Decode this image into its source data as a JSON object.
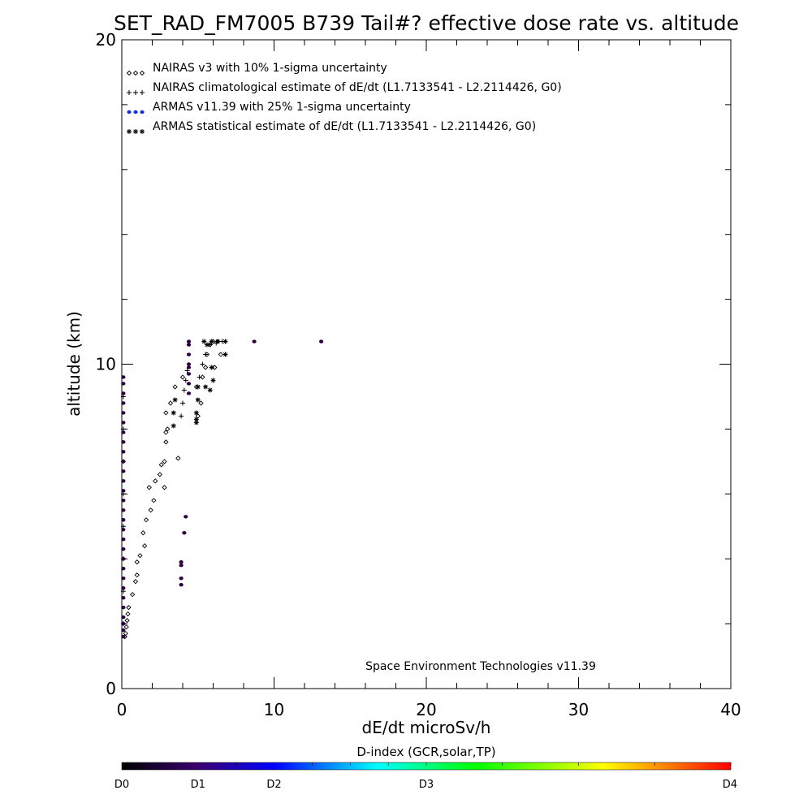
{
  "chart_data": {
    "type": "scatter",
    "title": "SET_RAD_FM7005  B739 Tail#? effective dose rate vs. altitude",
    "xlabel": "dE/dt microSv/h",
    "ylabel": "altitude (km)",
    "xlim": [
      0,
      40
    ],
    "ylim": [
      0,
      20
    ],
    "x_ticks": [
      "0",
      "10",
      "20",
      "30",
      "40"
    ],
    "y_ticks": [
      "0",
      "10",
      "20"
    ],
    "legend_position": "top-left",
    "grid": false,
    "annotation": "Space Environment Technologies v11.39",
    "colorbar": {
      "title": "D-index (GCR,solar,TP)",
      "labels": [
        {
          "text": "D0",
          "value": 0
        },
        {
          "text": "D1",
          "value": 5
        },
        {
          "text": "D2",
          "value": 10
        },
        {
          "text": "D3",
          "value": 20
        },
        {
          "text": "D4",
          "value": 40
        }
      ],
      "colors": [
        "#000000",
        "#3a0070",
        "#0000ff",
        "#00ffff",
        "#00ff00",
        "#ffff00",
        "#ff0000"
      ]
    },
    "series": [
      {
        "name": "NAIRAS v3 with 10% 1-sigma uncertainty",
        "marker": "diamond",
        "color": "#000000",
        "points": [
          [
            0.2,
            1.6
          ],
          [
            0.25,
            1.7
          ],
          [
            0.3,
            1.9
          ],
          [
            0.35,
            2.1
          ],
          [
            0.4,
            2.3
          ],
          [
            0.45,
            2.5
          ],
          [
            0.7,
            2.9
          ],
          [
            0.9,
            3.3
          ],
          [
            1.0,
            3.5
          ],
          [
            1.0,
            3.9
          ],
          [
            1.2,
            4.1
          ],
          [
            1.5,
            4.4
          ],
          [
            1.4,
            4.8
          ],
          [
            1.6,
            5.2
          ],
          [
            1.9,
            5.5
          ],
          [
            2.1,
            5.8
          ],
          [
            1.8,
            6.2
          ],
          [
            2.8,
            6.2
          ],
          [
            2.2,
            6.4
          ],
          [
            2.5,
            6.6
          ],
          [
            2.6,
            6.9
          ],
          [
            2.8,
            7.0
          ],
          [
            3.7,
            7.1
          ],
          [
            2.9,
            7.6
          ],
          [
            2.9,
            7.9
          ],
          [
            3.0,
            8.0
          ],
          [
            2.9,
            8.5
          ],
          [
            3.2,
            8.8
          ],
          [
            3.5,
            9.3
          ],
          [
            4.0,
            9.6
          ],
          [
            5.0,
            8.4
          ],
          [
            5.2,
            8.8
          ],
          [
            4.9,
            9.3
          ],
          [
            5.3,
            9.6
          ],
          [
            5.5,
            9.9
          ],
          [
            6.1,
            9.9
          ],
          [
            5.6,
            10.3
          ],
          [
            6.5,
            10.3
          ],
          [
            5.8,
            10.6
          ],
          [
            6.0,
            10.7
          ],
          [
            6.3,
            10.7
          ]
        ]
      },
      {
        "name": "NAIRAS climatological estimate of dE/dt (L1.7133541 - L2.2114426, G0)",
        "marker": "plus",
        "color": "#000000",
        "points": [
          [
            0.1,
            2.0
          ],
          [
            0.1,
            3.0
          ],
          [
            0.1,
            4.0
          ],
          [
            0.1,
            5.0
          ],
          [
            0.1,
            6.0
          ],
          [
            0.1,
            7.0
          ],
          [
            0.1,
            8.0
          ],
          [
            0.1,
            9.0
          ],
          [
            3.9,
            8.4
          ],
          [
            4.0,
            8.8
          ],
          [
            4.1,
            9.2
          ],
          [
            4.2,
            9.5
          ],
          [
            4.3,
            9.8
          ],
          [
            5.1,
            9.6
          ],
          [
            5.3,
            10.0
          ],
          [
            5.5,
            10.3
          ],
          [
            5.8,
            10.6
          ],
          [
            6.2,
            10.65
          ],
          [
            6.6,
            10.7
          ]
        ]
      },
      {
        "name": "ARMAS v11.39 with 25% 1-sigma uncertainty",
        "marker": "dot",
        "color": "#2a003f",
        "points": [
          [
            0.1,
            1.6
          ],
          [
            0.1,
            1.8
          ],
          [
            0.1,
            2.0
          ],
          [
            0.1,
            2.2
          ],
          [
            0.1,
            2.5
          ],
          [
            0.1,
            2.8
          ],
          [
            0.1,
            3.1
          ],
          [
            0.1,
            3.4
          ],
          [
            0.1,
            3.7
          ],
          [
            0.1,
            4.0
          ],
          [
            0.1,
            4.3
          ],
          [
            0.1,
            4.6
          ],
          [
            0.1,
            4.9
          ],
          [
            0.1,
            5.2
          ],
          [
            0.1,
            5.5
          ],
          [
            0.1,
            5.8
          ],
          [
            0.1,
            6.1
          ],
          [
            0.1,
            6.4
          ],
          [
            0.1,
            6.7
          ],
          [
            0.1,
            7.0
          ],
          [
            0.1,
            7.3
          ],
          [
            0.1,
            7.6
          ],
          [
            0.1,
            7.9
          ],
          [
            0.1,
            8.2
          ],
          [
            0.1,
            8.5
          ],
          [
            0.1,
            8.8
          ],
          [
            0.1,
            9.1
          ],
          [
            0.1,
            9.4
          ],
          [
            0.1,
            9.6
          ],
          [
            3.9,
            3.2
          ],
          [
            3.9,
            3.4
          ],
          [
            3.9,
            3.8
          ],
          [
            3.9,
            3.9
          ],
          [
            4.1,
            4.8
          ],
          [
            4.2,
            5.3
          ],
          [
            4.4,
            9.1
          ],
          [
            4.4,
            9.4
          ],
          [
            4.4,
            9.7
          ],
          [
            4.4,
            9.9
          ],
          [
            4.4,
            10.0
          ],
          [
            4.4,
            10.3
          ],
          [
            4.4,
            10.6
          ],
          [
            4.4,
            10.7
          ],
          [
            8.7,
            10.7
          ],
          [
            13.1,
            10.7
          ]
        ]
      },
      {
        "name": "ARMAS statistical estimate of dE/dt (L1.7133541 - L2.2114426, G0)",
        "marker": "star",
        "color": "#000000",
        "points": [
          [
            3.4,
            8.1
          ],
          [
            3.4,
            8.5
          ],
          [
            3.5,
            8.9
          ],
          [
            4.9,
            8.2
          ],
          [
            4.9,
            8.3
          ],
          [
            4.9,
            8.5
          ],
          [
            5.0,
            8.9
          ],
          [
            5.0,
            9.3
          ],
          [
            5.5,
            9.3
          ],
          [
            5.8,
            9.2
          ],
          [
            6.0,
            9.5
          ],
          [
            5.9,
            9.9
          ],
          [
            6.8,
            10.3
          ],
          [
            5.6,
            10.6
          ],
          [
            5.9,
            10.7
          ],
          [
            6.3,
            10.7
          ],
          [
            6.8,
            10.7
          ],
          [
            5.4,
            10.7
          ]
        ]
      }
    ]
  }
}
